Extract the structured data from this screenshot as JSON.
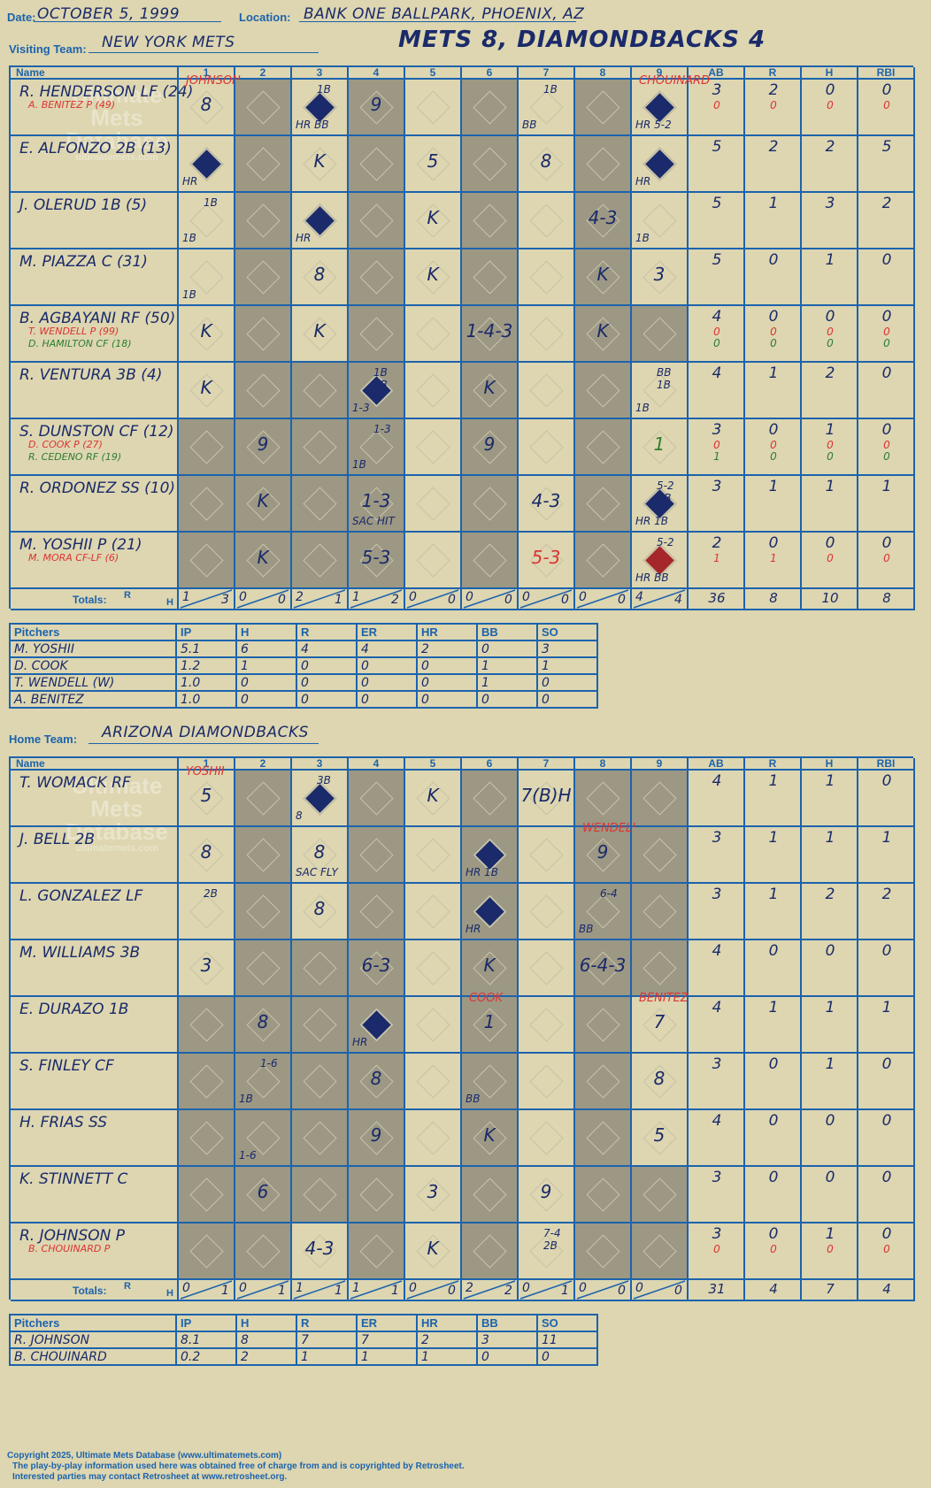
{
  "header": {
    "date_label": "Date:",
    "date": "OCTOBER 5, 1999",
    "location_label": "Location:",
    "location": "BANK ONE BALLPARK, PHOENIX, AZ",
    "title": "METS 8, DIAMONDBACKS 4"
  },
  "visiting": {
    "team_label": "Visiting Team:",
    "team": "NEW YORK METS",
    "rows": [
      {
        "name": "R. HENDERSON LF (24)",
        "subs": [
          {
            "t": "A. BENITEZ P (49)",
            "c": "red"
          }
        ],
        "ab": "3",
        "r": "2",
        "h": "0",
        "rbi": "0",
        "subab": [
          "0"
        ],
        "subr": [
          "0"
        ],
        "subh": [
          "0"
        ],
        "subrbi": [
          "0"
        ]
      },
      {
        "name": "E. ALFONZO 2B (13)",
        "subs": [],
        "ab": "5",
        "r": "2",
        "h": "2",
        "rbi": "5"
      },
      {
        "name": "J. OLERUD 1B (5)",
        "subs": [],
        "ab": "5",
        "r": "1",
        "h": "3",
        "rbi": "2"
      },
      {
        "name": "M. PIAZZA C (31)",
        "subs": [],
        "ab": "5",
        "r": "0",
        "h": "1",
        "rbi": "0"
      },
      {
        "name": "B. AGBAYANI RF (50)",
        "subs": [
          {
            "t": "T. WENDELL P (99)",
            "c": "red"
          },
          {
            "t": "D. HAMILTON CF (18)",
            "c": "grn"
          }
        ],
        "ab": "4",
        "r": "0",
        "h": "0",
        "rbi": "0",
        "subab": [
          "0",
          "0"
        ],
        "subr": [
          "0",
          "0"
        ],
        "subh": [
          "0",
          "0"
        ],
        "subrbi": [
          "0",
          "0"
        ]
      },
      {
        "name": "R. VENTURA 3B (4)",
        "subs": [],
        "ab": "4",
        "r": "1",
        "h": "2",
        "rbi": "0"
      },
      {
        "name": "S. DUNSTON CF (12)",
        "subs": [
          {
            "t": "D. COOK P (27)",
            "c": "red"
          },
          {
            "t": "R. CEDENO RF (19)",
            "c": "grn"
          }
        ],
        "ab": "3",
        "r": "0",
        "h": "1",
        "rbi": "0",
        "subab": [
          "0",
          "1"
        ],
        "subr": [
          "0",
          "0"
        ],
        "subh": [
          "0",
          "0"
        ],
        "subrbi": [
          "0",
          "0"
        ]
      },
      {
        "name": "R. ORDONEZ SS (10)",
        "subs": [],
        "ab": "3",
        "r": "1",
        "h": "1",
        "rbi": "1"
      },
      {
        "name": "M. YOSHII P (21)",
        "subs": [
          {
            "t": "M. MORA CF-LF (6)",
            "c": "red"
          }
        ],
        "ab": "2",
        "r": "0",
        "h": "0",
        "rbi": "0",
        "subab": [
          "1"
        ],
        "subr": [
          "1"
        ],
        "subh": [
          "0"
        ],
        "subrbi": [
          "0"
        ]
      }
    ],
    "totals_label": "Totals:",
    "inning_totals": [
      [
        "1",
        "3"
      ],
      [
        "0",
        "0"
      ],
      [
        "2",
        "1"
      ],
      [
        "1",
        "2"
      ],
      [
        "0",
        "0"
      ],
      [
        "0",
        "0"
      ],
      [
        "0",
        "0"
      ],
      [
        "0",
        "0"
      ],
      [
        "4",
        "4"
      ]
    ],
    "totals": {
      "ab": "36",
      "r": "8",
      "h": "10",
      "rbi": "8"
    },
    "pitchers": [
      [
        "M. YOSHII",
        "5.1",
        "6",
        "4",
        "4",
        "2",
        "0",
        "3"
      ],
      [
        "D. COOK",
        "1.2",
        "1",
        "0",
        "0",
        "0",
        "1",
        "1"
      ],
      [
        "T. WENDELL (W)",
        "1.0",
        "0",
        "0",
        "0",
        "0",
        "1",
        "0"
      ],
      [
        "A. BENITEZ",
        "1.0",
        "0",
        "0",
        "0",
        "0",
        "0",
        "0"
      ]
    ]
  },
  "home": {
    "team_label": "Home Team:",
    "team": "ARIZONA DIAMONDBACKS",
    "rows": [
      {
        "name": "T. WOMACK RF",
        "subs": [],
        "ab": "4",
        "r": "1",
        "h": "1",
        "rbi": "0"
      },
      {
        "name": "J. BELL 2B",
        "subs": [],
        "ab": "3",
        "r": "1",
        "h": "1",
        "rbi": "1"
      },
      {
        "name": "L. GONZALEZ LF",
        "subs": [],
        "ab": "3",
        "r": "1",
        "h": "2",
        "rbi": "2"
      },
      {
        "name": "M. WILLIAMS 3B",
        "subs": [],
        "ab": "4",
        "r": "0",
        "h": "0",
        "rbi": "0"
      },
      {
        "name": "E. DURAZO 1B",
        "subs": [],
        "ab": "4",
        "r": "1",
        "h": "1",
        "rbi": "1"
      },
      {
        "name": "S. FINLEY CF",
        "subs": [],
        "ab": "3",
        "r": "0",
        "h": "1",
        "rbi": "0"
      },
      {
        "name": "H. FRIAS SS",
        "subs": [],
        "ab": "4",
        "r": "0",
        "h": "0",
        "rbi": "0"
      },
      {
        "name": "K. STINNETT C",
        "subs": [],
        "ab": "3",
        "r": "0",
        "h": "0",
        "rbi": "0"
      },
      {
        "name": "R. JOHNSON P",
        "subs": [
          {
            "t": "B. CHOUINARD P",
            "c": "red"
          }
        ],
        "ab": "3",
        "r": "0",
        "h": "1",
        "rbi": "0",
        "subab": [
          "0"
        ],
        "subr": [
          "0"
        ],
        "subh": [
          "0"
        ],
        "subrbi": [
          "0"
        ]
      }
    ],
    "totals_label": "Totals:",
    "inning_totals": [
      [
        "0",
        "1"
      ],
      [
        "0",
        "1"
      ],
      [
        "1",
        "1"
      ],
      [
        "1",
        "1"
      ],
      [
        "0",
        "0"
      ],
      [
        "2",
        "2"
      ],
      [
        "0",
        "1"
      ],
      [
        "0",
        "0"
      ],
      [
        "0",
        "0"
      ]
    ],
    "totals": {
      "ab": "31",
      "r": "4",
      "h": "7",
      "rbi": "4"
    },
    "pitchers": [
      [
        "R. JOHNSON",
        "8.1",
        "8",
        "7",
        "7",
        "2",
        "3",
        "11"
      ],
      [
        "B. CHOUINARD",
        "0.2",
        "2",
        "1",
        "1",
        "1",
        "0",
        "0"
      ]
    ]
  },
  "columns": {
    "name": "Name",
    "innings": [
      "1",
      "2",
      "3",
      "4",
      "5",
      "6",
      "7",
      "8",
      "9"
    ],
    "ab": "AB",
    "r": "R",
    "h": "H",
    "rbi": "RBI",
    "rh_r": "R",
    "rh_h": "H"
  },
  "pitch_cols": [
    "Pitchers",
    "IP",
    "H",
    "R",
    "ER",
    "HR",
    "BB",
    "SO"
  ],
  "watermark": [
    "Ultimate",
    "Mets",
    "Database",
    "ultimatemets.com"
  ],
  "visiting_plays": [
    [
      {
        "t": "8",
        "s": "",
        "n": "JOHNSON",
        "nc": "red"
      },
      null,
      {
        "t": "",
        "s": "1B",
        "f": 1,
        "b": "HR BB"
      },
      {
        "t": "9"
      },
      null,
      null,
      {
        "t": "",
        "s": "1B",
        "b": "BB"
      },
      null,
      {
        "t": "",
        "f": 1,
        "b": "HR 5-2",
        "n": "CHOUINARD",
        "nc": "red"
      }
    ],
    [
      {
        "t": "",
        "f": 1,
        "b": "HR"
      },
      null,
      {
        "t": "K"
      },
      null,
      {
        "t": "5"
      },
      null,
      {
        "t": "8"
      },
      null,
      {
        "t": "",
        "f": 1,
        "b": "HR"
      }
    ],
    [
      {
        "t": "",
        "s": "1B",
        "b": "1B"
      },
      null,
      {
        "t": "",
        "f": 1,
        "b": "HR"
      },
      null,
      {
        "t": "K"
      },
      null,
      null,
      {
        "t": "4-3"
      },
      {
        "t": "",
        "b": "1B"
      }
    ],
    [
      {
        "t": "",
        "b": "1B"
      },
      null,
      {
        "t": "8"
      },
      null,
      {
        "t": "K"
      },
      null,
      null,
      {
        "t": "K"
      },
      {
        "t": "3"
      }
    ],
    [
      {
        "t": "K"
      },
      null,
      {
        "t": "K"
      },
      null,
      null,
      {
        "t": "1-4-3"
      },
      null,
      {
        "t": "K"
      },
      null
    ],
    [
      {
        "t": "K"
      },
      null,
      null,
      {
        "t": "",
        "s": "1B 2B",
        "f": 1,
        "b": "1-3"
      },
      null,
      {
        "t": "K"
      },
      null,
      null,
      {
        "t": "",
        "s": "BB 1B",
        "b": "1B"
      }
    ],
    [
      null,
      {
        "t": "9"
      },
      null,
      {
        "t": "",
        "s": "1-3",
        "b": "1B"
      },
      null,
      {
        "t": "9"
      },
      null,
      null,
      {
        "t": "1",
        "c": "grn"
      }
    ],
    [
      null,
      {
        "t": "K"
      },
      null,
      {
        "t": "1-3",
        "b": "SAC HIT"
      },
      null,
      null,
      {
        "t": "4-3"
      },
      null,
      {
        "t": "",
        "s": "5-2 BB",
        "f": 1,
        "b": "HR 1B"
      }
    ],
    [
      null,
      {
        "t": "K"
      },
      null,
      {
        "t": "5-3"
      },
      null,
      null,
      {
        "t": "5-3",
        "c": "red"
      },
      null,
      {
        "t": "",
        "s": "5-2",
        "r": 1,
        "b": "HR BB"
      }
    ]
  ],
  "home_plays": [
    [
      {
        "t": "5",
        "n": "YOSHII",
        "nc": "red"
      },
      null,
      {
        "t": "",
        "s": "3B",
        "f": 1,
        "b": "8"
      },
      null,
      {
        "t": "K"
      },
      null,
      {
        "t": "7(B)H"
      },
      null,
      null
    ],
    [
      {
        "t": "8"
      },
      null,
      {
        "t": "8",
        "b": "SAC FLY"
      },
      null,
      null,
      {
        "t": "",
        "f": 1,
        "b": "HR 1B"
      },
      null,
      {
        "t": "9",
        "n": "WENDELL",
        "nc": "red"
      },
      null
    ],
    [
      {
        "t": "",
        "s": "2B"
      },
      null,
      {
        "t": "8"
      },
      null,
      null,
      {
        "t": "",
        "f": 1,
        "b": "HR"
      },
      null,
      {
        "t": "",
        "s": "6-4",
        "b": "BB"
      },
      null
    ],
    [
      {
        "t": "3"
      },
      null,
      null,
      {
        "t": "6-3"
      },
      null,
      {
        "t": "K"
      },
      null,
      {
        "t": "6-4-3"
      },
      null
    ],
    [
      null,
      {
        "t": "8"
      },
      null,
      {
        "t": "",
        "f": 1,
        "b": "HR"
      },
      null,
      {
        "t": "1",
        "n": "COOK",
        "nc": "red"
      },
      null,
      null,
      {
        "t": "7",
        "n": "BENITEZ",
        "nc": "red"
      }
    ],
    [
      null,
      {
        "t": "",
        "s": "1-6",
        "b": "1B"
      },
      null,
      {
        "t": "8"
      },
      null,
      {
        "t": "",
        "b": "BB"
      },
      null,
      null,
      {
        "t": "8"
      }
    ],
    [
      null,
      {
        "t": "",
        "b": "1-6"
      },
      null,
      {
        "t": "9"
      },
      null,
      {
        "t": "K"
      },
      null,
      null,
      {
        "t": "5"
      }
    ],
    [
      null,
      {
        "t": "6"
      },
      null,
      null,
      {
        "t": "3"
      },
      null,
      {
        "t": "9"
      },
      null,
      null
    ],
    [
      null,
      null,
      {
        "t": "4-3"
      },
      null,
      {
        "t": "K"
      },
      null,
      {
        "t": "",
        "s": "7-4 2B"
      },
      null,
      null
    ]
  ],
  "footer": [
    "Copyright 2025, Ultimate Mets Database (www.ultimatemets.com)",
    "The play-by-play information used here was obtained free of charge from and is copyrighted by Retrosheet.",
    "Interested parties may contact Retrosheet at www.retrosheet.org."
  ]
}
